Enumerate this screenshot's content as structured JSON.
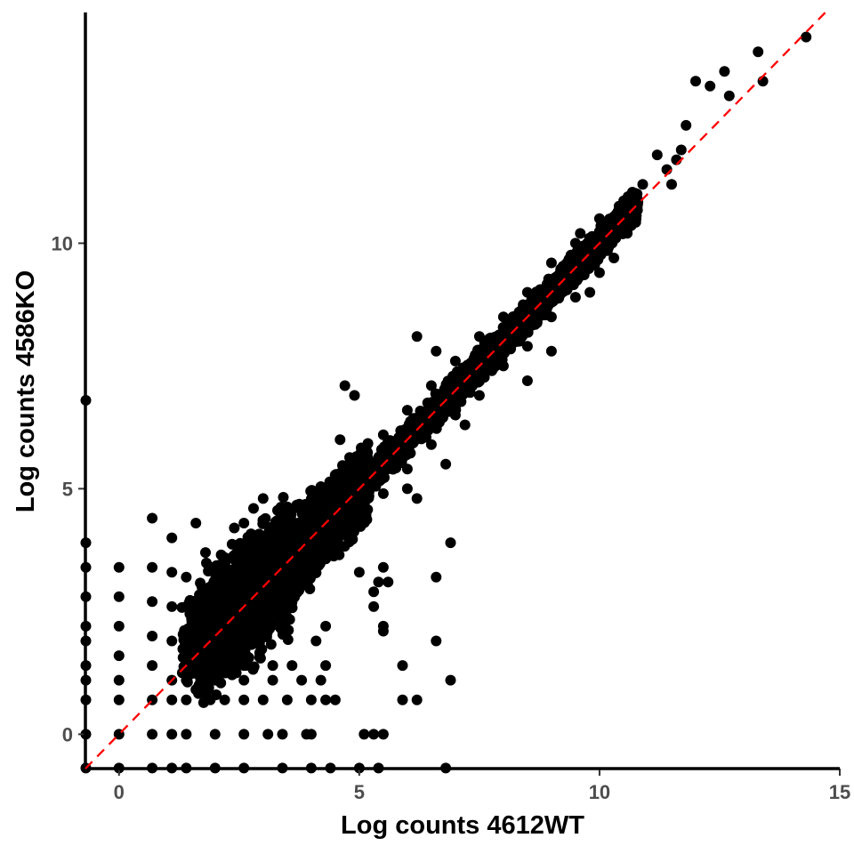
{
  "chart_data": {
    "type": "scatter",
    "xlabel": "Log counts 4612WT",
    "ylabel": "Log counts 4586KO",
    "xlim": [
      -0.7,
      15
    ],
    "ylim": [
      -0.7,
      14.7
    ],
    "xticks": [
      0,
      5,
      10,
      15
    ],
    "yticks": [
      0,
      5,
      10
    ],
    "grid": false,
    "legend": "none",
    "point_color": "#000000",
    "reference_line": {
      "type": "identity",
      "slope": 1,
      "intercept": 0,
      "style": "dashed",
      "color": "#ff0000"
    },
    "points": [
      [
        -0.69,
        6.8
      ],
      [
        -0.69,
        3.9
      ],
      [
        -0.69,
        3.4
      ],
      [
        -0.69,
        2.8
      ],
      [
        -0.69,
        2.2
      ],
      [
        -0.69,
        1.9
      ],
      [
        -0.69,
        1.4
      ],
      [
        -0.69,
        1.1
      ],
      [
        -0.69,
        0.7
      ],
      [
        -0.69,
        0
      ],
      [
        -0.69,
        -0.69
      ],
      [
        0,
        3.4
      ],
      [
        0,
        2.8
      ],
      [
        0,
        2.2
      ],
      [
        0,
        1.6
      ],
      [
        0,
        1.1
      ],
      [
        0,
        0.7
      ],
      [
        0,
        0
      ],
      [
        0,
        -0.69
      ],
      [
        0.69,
        4.4
      ],
      [
        0.69,
        3.4
      ],
      [
        0.69,
        2.7
      ],
      [
        0.69,
        2.0
      ],
      [
        0.69,
        1.4
      ],
      [
        0.69,
        0.7
      ],
      [
        0.69,
        0
      ],
      [
        0.69,
        -0.69
      ],
      [
        1.1,
        4.0
      ],
      [
        1.1,
        3.3
      ],
      [
        1.1,
        2.6
      ],
      [
        1.1,
        1.9
      ],
      [
        1.1,
        1.1
      ],
      [
        1.1,
        0.7
      ],
      [
        1.1,
        0
      ],
      [
        1.1,
        -0.69
      ],
      [
        1.4,
        3.2
      ],
      [
        1.4,
        2.6
      ],
      [
        1.4,
        1.9
      ],
      [
        1.4,
        1.4
      ],
      [
        1.4,
        1.1
      ],
      [
        1.4,
        0.7
      ],
      [
        1.4,
        0
      ],
      [
        1.4,
        -0.69
      ],
      [
        1.6,
        4.3
      ],
      [
        1.8,
        3.7
      ],
      [
        2.0,
        3.3
      ],
      [
        2.2,
        3.6
      ],
      [
        2.4,
        4.2
      ],
      [
        2.6,
        4.3
      ],
      [
        2.8,
        4.6
      ],
      [
        3.0,
        4.8
      ],
      [
        1.9,
        0.7
      ],
      [
        2.2,
        0.7
      ],
      [
        2.6,
        0.7
      ],
      [
        3.0,
        0.7
      ],
      [
        3.5,
        0.7
      ],
      [
        4.0,
        0.7
      ],
      [
        4.3,
        0.7
      ],
      [
        4.5,
        0.7
      ],
      [
        2.0,
        1.1
      ],
      [
        2.6,
        1.1
      ],
      [
        3.2,
        1.1
      ],
      [
        3.8,
        1.1
      ],
      [
        4.2,
        1.1
      ],
      [
        2.0,
        1.4
      ],
      [
        2.6,
        1.4
      ],
      [
        3.2,
        1.4
      ],
      [
        3.6,
        1.4
      ],
      [
        4.3,
        1.4
      ],
      [
        2.0,
        0
      ],
      [
        2.6,
        0
      ],
      [
        3.1,
        0
      ],
      [
        3.4,
        0
      ],
      [
        3.9,
        0
      ],
      [
        4.0,
        0
      ],
      [
        5.1,
        0
      ],
      [
        5.3,
        0
      ],
      [
        5.5,
        0
      ],
      [
        2.0,
        -0.69
      ],
      [
        2.6,
        -0.69
      ],
      [
        3.4,
        -0.69
      ],
      [
        4.0,
        -0.69
      ],
      [
        4.4,
        -0.69
      ],
      [
        5.0,
        -0.69
      ],
      [
        5.4,
        -0.69
      ],
      [
        6.8,
        -0.69
      ],
      [
        4.1,
        1.9
      ],
      [
        4.3,
        2.2
      ],
      [
        4.6,
        6.0
      ],
      [
        4.7,
        7.1
      ],
      [
        4.9,
        6.9
      ],
      [
        5.0,
        3.3
      ],
      [
        5.3,
        2.6
      ],
      [
        5.3,
        2.9
      ],
      [
        5.4,
        3.1
      ],
      [
        5.6,
        3.1
      ],
      [
        5.5,
        3.4
      ],
      [
        5.5,
        2.1
      ],
      [
        5.5,
        2.2
      ],
      [
        5.9,
        1.4
      ],
      [
        5.9,
        0.7
      ],
      [
        6.2,
        0.7
      ],
      [
        6.0,
        5.0
      ],
      [
        6.2,
        4.8
      ],
      [
        6.6,
        3.2
      ],
      [
        6.6,
        1.9
      ],
      [
        6.9,
        3.9
      ],
      [
        6.9,
        1.1
      ],
      [
        6.8,
        5.5
      ],
      [
        7.2,
        6.3
      ],
      [
        6.6,
        7.8
      ],
      [
        6.2,
        8.1
      ],
      [
        7.5,
        7.2
      ],
      [
        8.3,
        8.0
      ],
      [
        8.5,
        7.2
      ],
      [
        9.0,
        7.8
      ],
      [
        8.9,
        9.1
      ],
      [
        9.4,
        9.4
      ],
      [
        9.8,
        9.0
      ],
      [
        9.6,
        10.2
      ],
      [
        10.3,
        9.7
      ],
      [
        10.5,
        10.4
      ],
      [
        10.9,
        11.2
      ],
      [
        11.2,
        11.8
      ],
      [
        11.4,
        11.5
      ],
      [
        11.7,
        11.9
      ],
      [
        11.5,
        11.2
      ],
      [
        11.6,
        11.7
      ],
      [
        11.8,
        12.4
      ],
      [
        12.0,
        13.3
      ],
      [
        12.3,
        13.2
      ],
      [
        12.6,
        13.5
      ],
      [
        12.7,
        13.0
      ],
      [
        13.3,
        13.9
      ],
      [
        13.4,
        13.3
      ],
      [
        14.3,
        14.2
      ],
      [
        3.5,
        3.5
      ],
      [
        4.0,
        4.0
      ],
      [
        4.5,
        4.5
      ],
      [
        5.0,
        5.0
      ],
      [
        5.5,
        5.5
      ],
      [
        6.0,
        6.0
      ],
      [
        6.5,
        6.5
      ],
      [
        7.0,
        7.0
      ],
      [
        7.5,
        7.5
      ],
      [
        8.0,
        8.0
      ],
      [
        8.5,
        8.5
      ],
      [
        9.0,
        9.0
      ],
      [
        9.5,
        9.5
      ],
      [
        10.0,
        10.0
      ],
      [
        10.5,
        10.5
      ],
      [
        3.0,
        3.6
      ],
      [
        3.5,
        4.2
      ],
      [
        4.0,
        4.6
      ],
      [
        4.5,
        5.1
      ],
      [
        5.0,
        5.6
      ],
      [
        5.5,
        6.1
      ],
      [
        6.0,
        6.6
      ],
      [
        6.5,
        7.1
      ],
      [
        7.0,
        7.6
      ],
      [
        7.5,
        8.1
      ],
      [
        8.0,
        8.5
      ],
      [
        8.5,
        9.0
      ],
      [
        9.0,
        9.6
      ],
      [
        9.5,
        10.0
      ],
      [
        10.0,
        10.5
      ],
      [
        3.0,
        2.4
      ],
      [
        3.5,
        2.9
      ],
      [
        4.0,
        3.5
      ],
      [
        4.5,
        3.9
      ],
      [
        5.0,
        4.4
      ],
      [
        5.5,
        4.9
      ],
      [
        6.0,
        5.4
      ],
      [
        6.5,
        5.9
      ],
      [
        7.0,
        6.5
      ],
      [
        7.5,
        6.9
      ],
      [
        8.0,
        7.5
      ],
      [
        8.5,
        7.9
      ],
      [
        9.0,
        8.5
      ],
      [
        9.5,
        8.9
      ],
      [
        10.0,
        9.4
      ]
    ],
    "dense_bands": [
      {
        "x0": 1.4,
        "x1": 10.8,
        "half_width": 0.42,
        "count": 4000,
        "seed": 7
      },
      {
        "x0": 1.6,
        "x1": 5.2,
        "half_width": 1.0,
        "count": 2500,
        "seed": 11
      },
      {
        "x0": 1.3,
        "x1": 3.6,
        "half_width": 1.4,
        "count": 1400,
        "seed": 13,
        "ymin": 1.25
      }
    ]
  }
}
